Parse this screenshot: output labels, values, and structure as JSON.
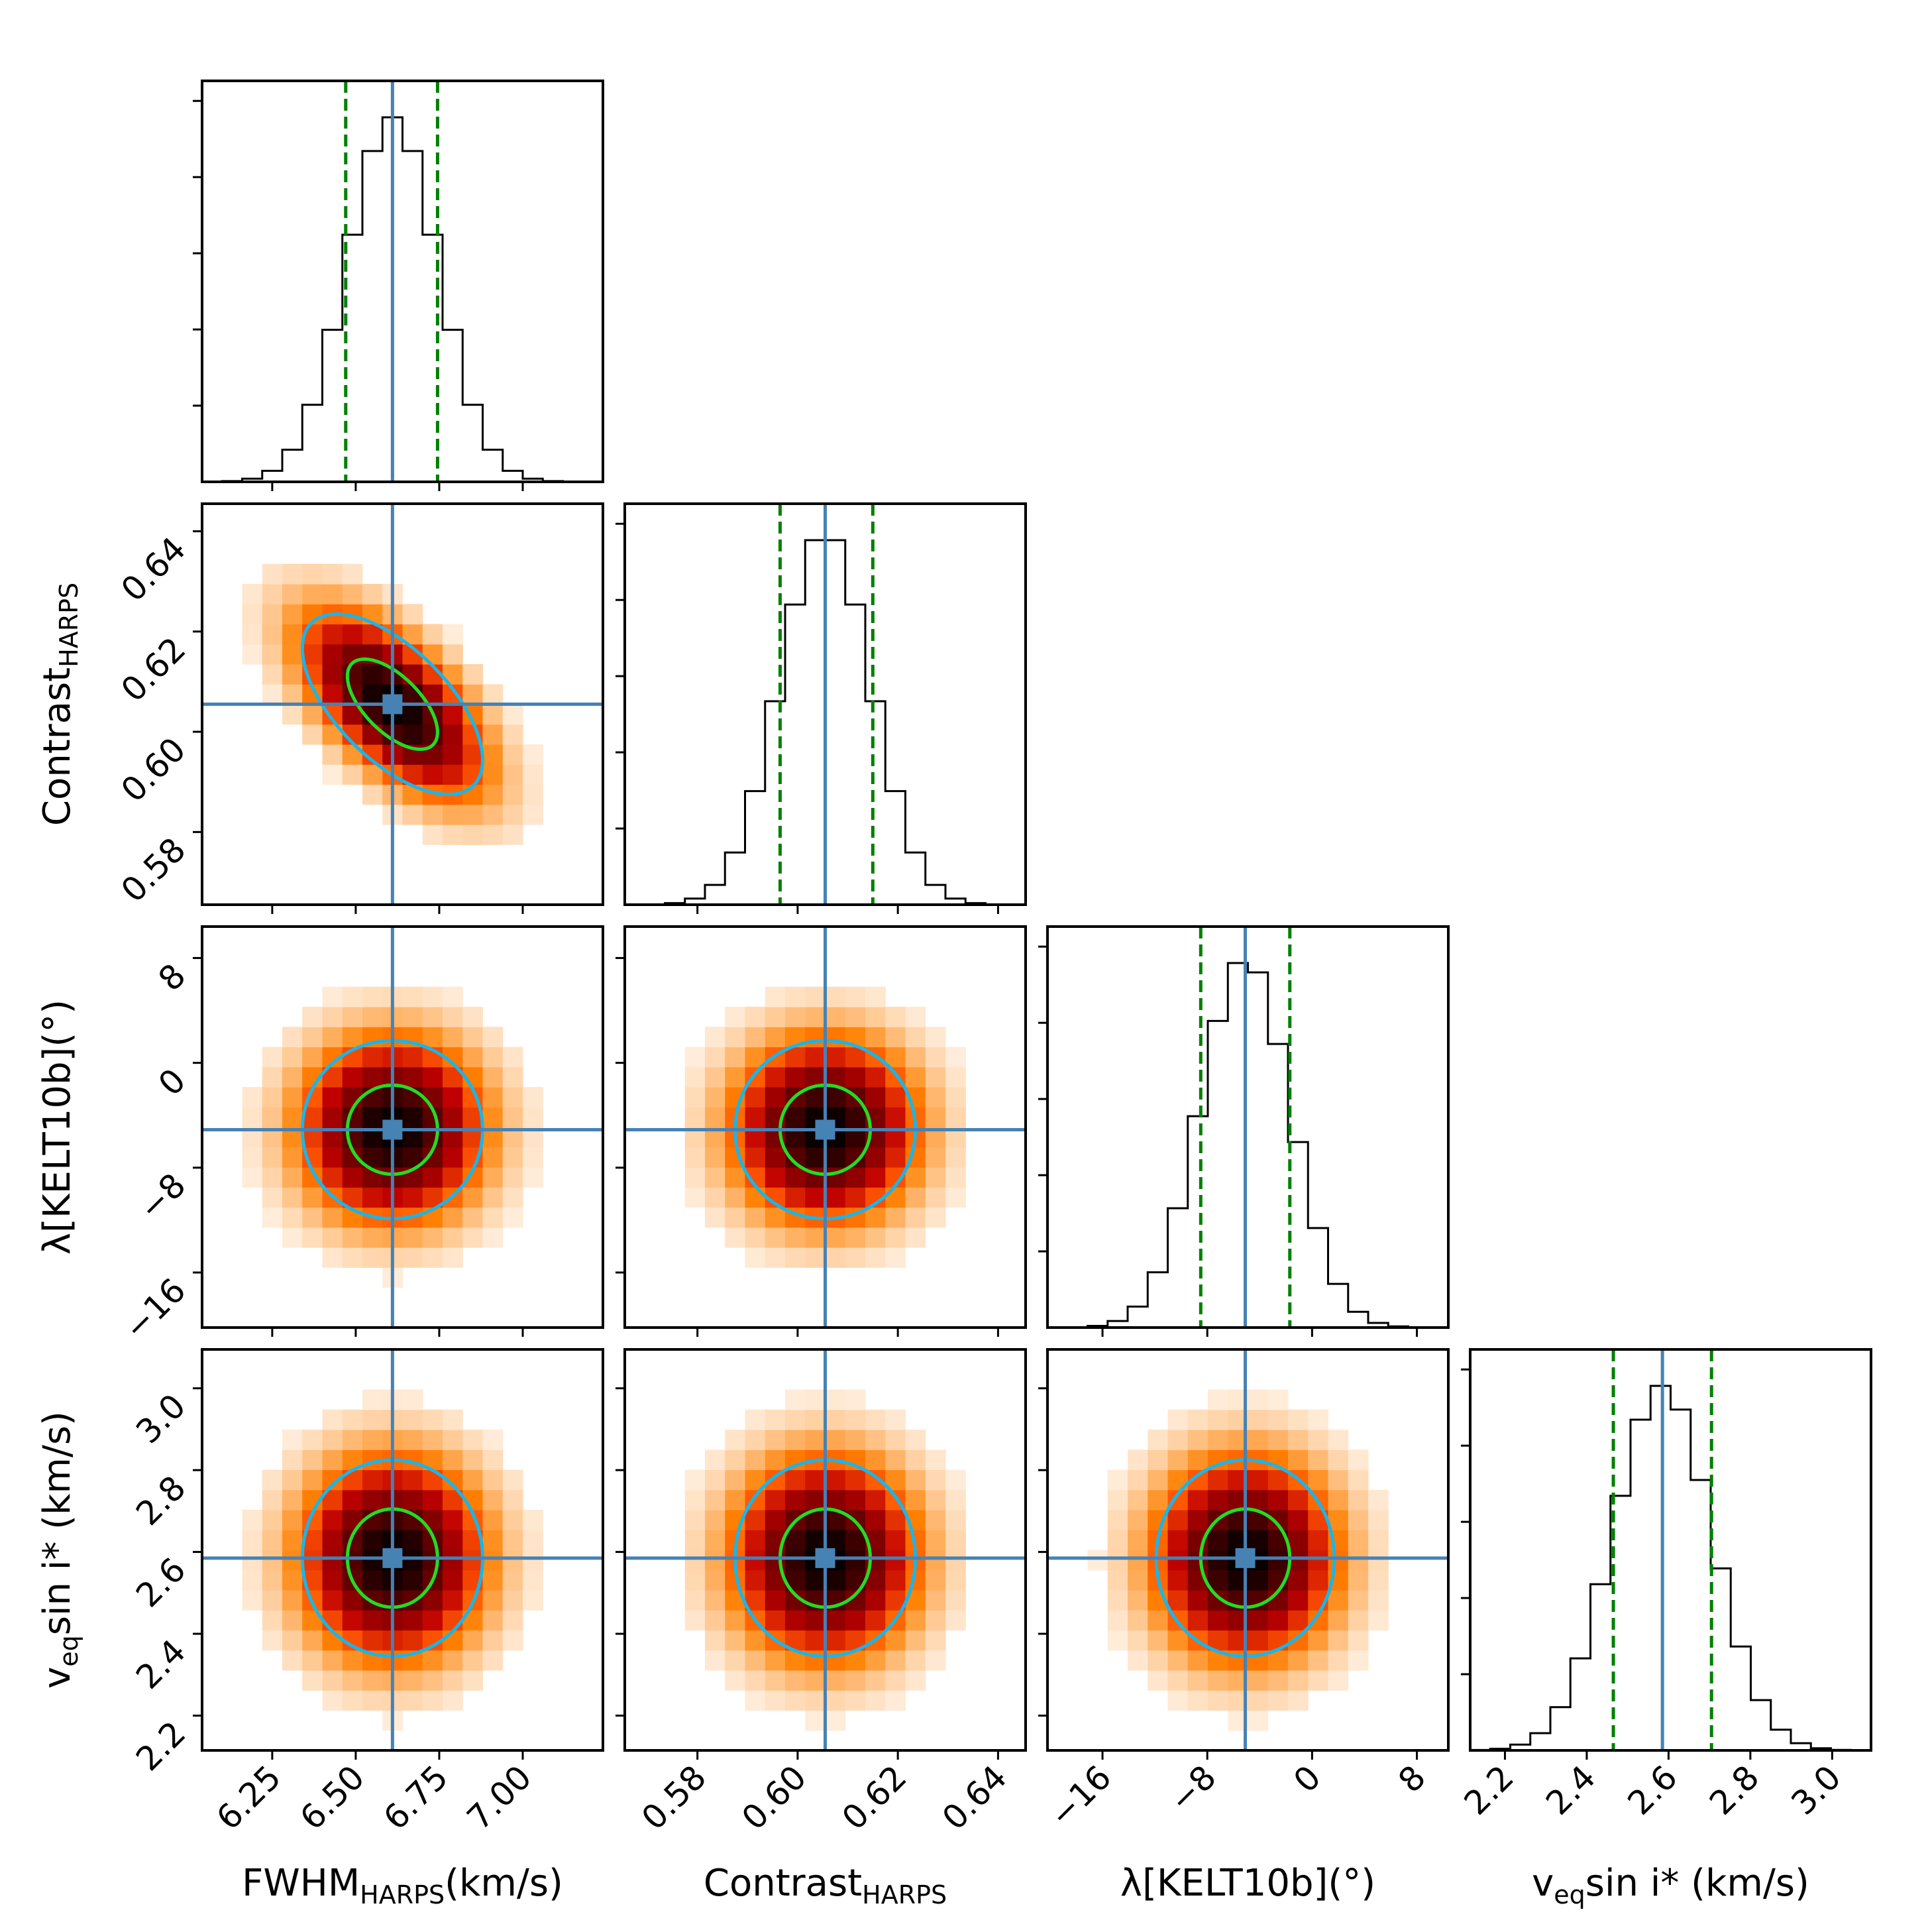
{
  "figure": {
    "kind": "corner-plot"
  },
  "colors": {
    "hist_step": "#000000",
    "truth_line": "#4682b4",
    "quantile_line": "#008000",
    "contour_outer": "#1ab5e8",
    "contour_inner": "#22dd22",
    "heatmap_map": "gist_heat_r"
  },
  "chart_data": {
    "type": "heatmap",
    "layout": "lower-triangular corner plot (histograms on diagonal, 2D density with contours below)",
    "parameters": [
      {
        "key": "fwhm",
        "label": "FWHM",
        "sub": "HARPS",
        "suffix": "(km/s)",
        "range": [
          6.04,
          7.24
        ],
        "ticks": [
          6.25,
          6.5,
          6.75,
          7.0
        ],
        "tick_labels": [
          "6.25",
          "6.50",
          "6.75",
          "7.00"
        ],
        "median": 6.61,
        "q16": 6.47,
        "q84": 6.745,
        "sigma": 0.135
      },
      {
        "key": "contrast",
        "label": "Contrast",
        "sub": "HARPS",
        "suffix": "",
        "range": [
          0.5655,
          0.6455
        ],
        "ticks": [
          0.58,
          0.6,
          0.62,
          0.64
        ],
        "tick_labels": [
          "0.58",
          "0.60",
          "0.62",
          "0.64"
        ],
        "median": 0.6055,
        "q16": 0.5965,
        "q84": 0.615,
        "sigma": 0.009
      },
      {
        "key": "lambda",
        "label": "λ[KELT10b](°)",
        "sub": "",
        "suffix": "",
        "range": [
          -20.2,
          10.4
        ],
        "ticks": [
          -16,
          -8,
          0,
          8
        ],
        "tick_labels": [
          "−16",
          "−8",
          "0",
          "8"
        ],
        "median": -5.1,
        "q16": -8.5,
        "q84": -1.7,
        "sigma": 3.4
      },
      {
        "key": "vsini",
        "label": "v",
        "sub": "eq",
        "suffix": "sin i* (km/s)",
        "range": [
          2.115,
          3.095
        ],
        "ticks": [
          2.2,
          2.4,
          2.6,
          2.8,
          3.0
        ],
        "tick_labels": [
          "2.2",
          "2.4",
          "2.6",
          "2.8",
          "3.0"
        ],
        "median": 2.585,
        "q16": 2.465,
        "q84": 2.705,
        "sigma": 0.12
      }
    ],
    "correlations": {
      "1-0": -0.62,
      "2-0": 0.0,
      "2-1": 0.0,
      "3-0": 0.0,
      "3-1": 0.0,
      "3-2": 0.0
    },
    "histogram_bins": 20,
    "contour_levels_sigma": [
      1,
      2
    ],
    "axis_labels": {
      "x": [
        "FWHM",
        "Contrast",
        "λ[KELT10b](°)",
        "v"
      ],
      "y": [
        "Contrast",
        "λ[KELT10b](°)",
        "v"
      ]
    }
  }
}
